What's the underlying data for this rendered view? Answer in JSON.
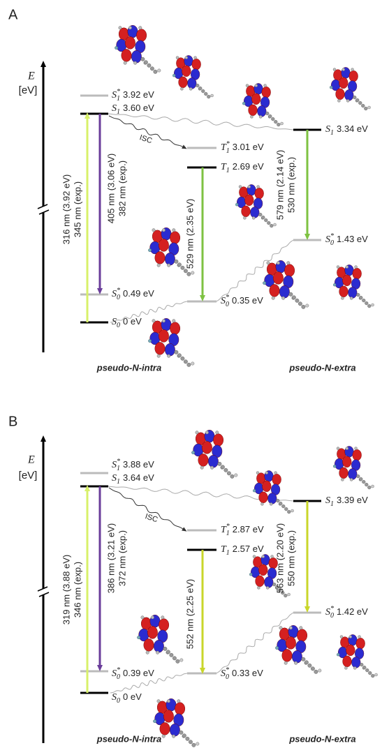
{
  "panels": [
    {
      "letter": "A",
      "axis": {
        "symbol": "E",
        "unit": "[eV]"
      },
      "levels": [
        {
          "state": "S",
          "sub": "1",
          "sup": "*",
          "energy": "3.92 eV"
        },
        {
          "state": "S",
          "sub": "1",
          "energy": "3.60 eV"
        },
        {
          "state": "S",
          "sub": "0",
          "sup": "*",
          "energy": "0.49 eV"
        },
        {
          "state": "S",
          "sub": "0",
          "energy": "0 eV"
        },
        {
          "state": "T",
          "sub": "1",
          "sup": "*",
          "energy": "3.01 eV"
        },
        {
          "state": "T",
          "sub": "1",
          "energy": "2.69 eV"
        },
        {
          "state": "S",
          "sub": "0",
          "sup": "*",
          "energy": "0.35 eV"
        },
        {
          "state": "S",
          "sub": "1",
          "energy": "3.34 eV"
        },
        {
          "state": "S",
          "sub": "0",
          "sup": "*",
          "energy": "1.43 eV"
        }
      ],
      "transitions": [
        {
          "lines": [
            "316 nm (3.92 eV)",
            "345 nm (exp.)"
          ]
        },
        {
          "lines": [
            "405 nm (3.06 eV)",
            "382 nm (exp.)"
          ]
        },
        {
          "lines": [
            "529 nm (2.35 eV)"
          ]
        },
        {
          "lines": [
            "579 nm (2.14 eV)",
            "530 nm (exp.)"
          ]
        }
      ],
      "isc": "ISC",
      "molecules": [
        "pseudo-N-intra",
        "pseudo-N-extra"
      ]
    },
    {
      "letter": "B",
      "axis": {
        "symbol": "E",
        "unit": "[eV]"
      },
      "levels": [
        {
          "state": "S",
          "sub": "1",
          "sup": "*",
          "energy": "3.88 eV"
        },
        {
          "state": "S",
          "sub": "1",
          "energy": "3.64 eV"
        },
        {
          "state": "S",
          "sub": "0",
          "sup": "*",
          "energy": "0.39 eV"
        },
        {
          "state": "S",
          "sub": "0",
          "energy": "0 eV"
        },
        {
          "state": "T",
          "sub": "1",
          "sup": "*",
          "energy": "2.87 eV"
        },
        {
          "state": "T",
          "sub": "1",
          "energy": "2.57 eV"
        },
        {
          "state": "S",
          "sub": "0",
          "sup": "*",
          "energy": "0.33 eV"
        },
        {
          "state": "S",
          "sub": "1",
          "energy": "3.39 eV"
        },
        {
          "state": "S",
          "sub": "0",
          "sup": "*",
          "energy": "1.42 eV"
        }
      ],
      "transitions": [
        {
          "lines": [
            "319 nm (3.88 eV)",
            "346 nm (exp.)"
          ]
        },
        {
          "lines": [
            "386 nm (3.21 eV)",
            "372 nm (exp.)"
          ]
        },
        {
          "lines": [
            "552 nm (2.25 eV)"
          ]
        },
        {
          "lines": [
            "563 nm (2.20 eV)",
            "550 nm (exp.)"
          ]
        }
      ],
      "isc": "ISC",
      "molecules": [
        "pseudo-N-intra",
        "pseudo-N-extra"
      ]
    }
  ]
}
